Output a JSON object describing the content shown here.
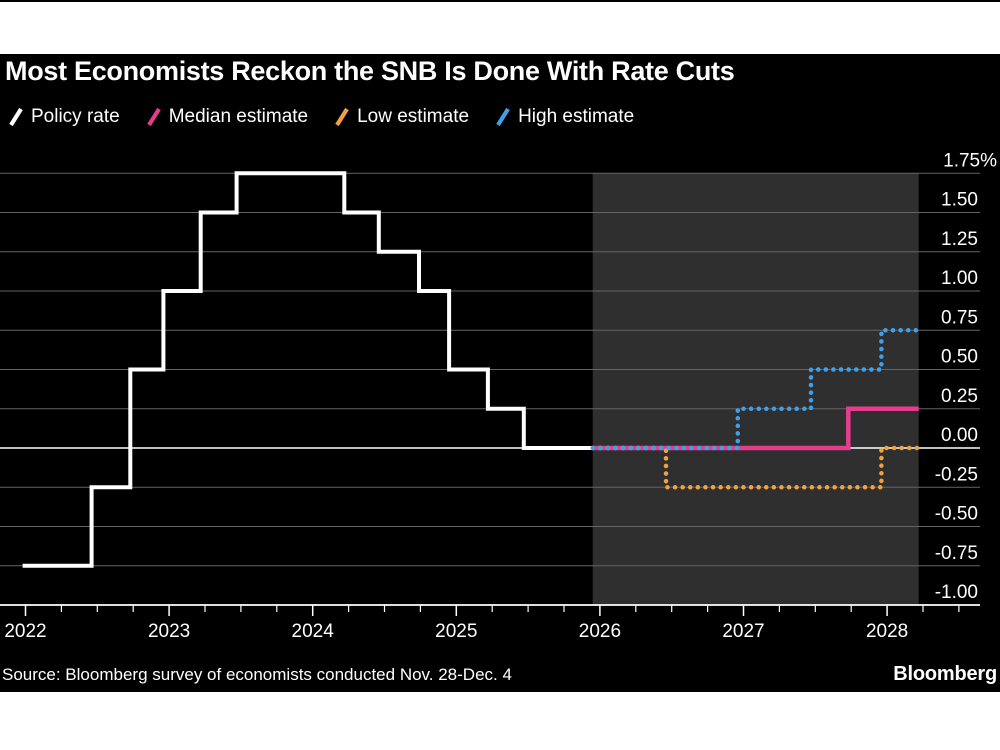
{
  "header": {
    "title": "Most Economists Reckon the SNB Is Done With Rate Cuts"
  },
  "legend": {
    "items": [
      {
        "label": "Policy rate",
        "color": "#ffffff"
      },
      {
        "label": "Median estimate",
        "color": "#e83b8e"
      },
      {
        "label": "Low estimate",
        "color": "#efa23f"
      },
      {
        "label": "High estimate",
        "color": "#3ea0eb"
      }
    ]
  },
  "colors": {
    "page": "#ffffff",
    "canvas_background": "#000000",
    "grid": "#646464",
    "zero_line": "#ffffff",
    "axis": "#ffffff",
    "text": "#ffffff",
    "forecast_shade": "#2f2f2f"
  },
  "chart_data": {
    "type": "line",
    "step": true,
    "title": "Most Economists Reckon the SNB Is Done With Rate Cuts",
    "unit": "%",
    "grid": true,
    "legend_position": "top",
    "x_axis": {
      "tick_years": [
        2022,
        2023,
        2024,
        2025,
        2026,
        2027,
        2028
      ],
      "minor_tick_interval_years": 0.25,
      "range": [
        2022,
        2028.65
      ]
    },
    "y_axis": {
      "tick_values": [
        1.75,
        1.5,
        1.25,
        1.0,
        0.75,
        0.5,
        0.25,
        0.0,
        -0.25,
        -0.5,
        -0.75,
        -1.0
      ],
      "tick_labels": [
        "1.75%",
        "1.50",
        "1.25",
        "1.00",
        "0.75",
        "0.50",
        "0.25",
        "0.00",
        "-0.25",
        "-0.50",
        "-0.75",
        "-1.00"
      ],
      "range": [
        -1.0,
        1.75
      ]
    },
    "forecast_shade": {
      "x_start": 2025.95,
      "x_end": 2028.22
    },
    "series": [
      {
        "name": "Policy rate",
        "color": "#ffffff",
        "line_style": "solid",
        "points": [
          [
            2021.98,
            -0.75
          ],
          [
            2022.46,
            -0.25
          ],
          [
            2022.73,
            0.5
          ],
          [
            2022.96,
            1.0
          ],
          [
            2023.22,
            1.5
          ],
          [
            2023.47,
            1.75
          ],
          [
            2024.22,
            1.5
          ],
          [
            2024.46,
            1.25
          ],
          [
            2024.74,
            1.0
          ],
          [
            2024.95,
            0.5
          ],
          [
            2025.22,
            0.25
          ],
          [
            2025.47,
            0.0
          ],
          [
            2025.95,
            0.0
          ]
        ]
      },
      {
        "name": "Median estimate",
        "color": "#e83b8e",
        "line_style": "solid",
        "points": [
          [
            2025.95,
            0.0
          ],
          [
            2027.73,
            0.25
          ],
          [
            2028.22,
            0.25
          ]
        ]
      },
      {
        "name": "Low estimate",
        "color": "#efa23f",
        "line_style": "dotted",
        "points": [
          [
            2025.95,
            0.0
          ],
          [
            2026.46,
            -0.25
          ],
          [
            2027.96,
            0.0
          ],
          [
            2028.22,
            0.0
          ]
        ]
      },
      {
        "name": "High estimate",
        "color": "#3ea0eb",
        "line_style": "dotted",
        "points": [
          [
            2025.95,
            0.0
          ],
          [
            2026.96,
            0.25
          ],
          [
            2027.47,
            0.5
          ],
          [
            2027.96,
            0.75
          ],
          [
            2028.22,
            0.75
          ]
        ]
      }
    ]
  },
  "footer": {
    "source": "Source: Bloomberg survey of economists conducted Nov. 28-Dec. 4",
    "brand": "Bloomberg"
  }
}
